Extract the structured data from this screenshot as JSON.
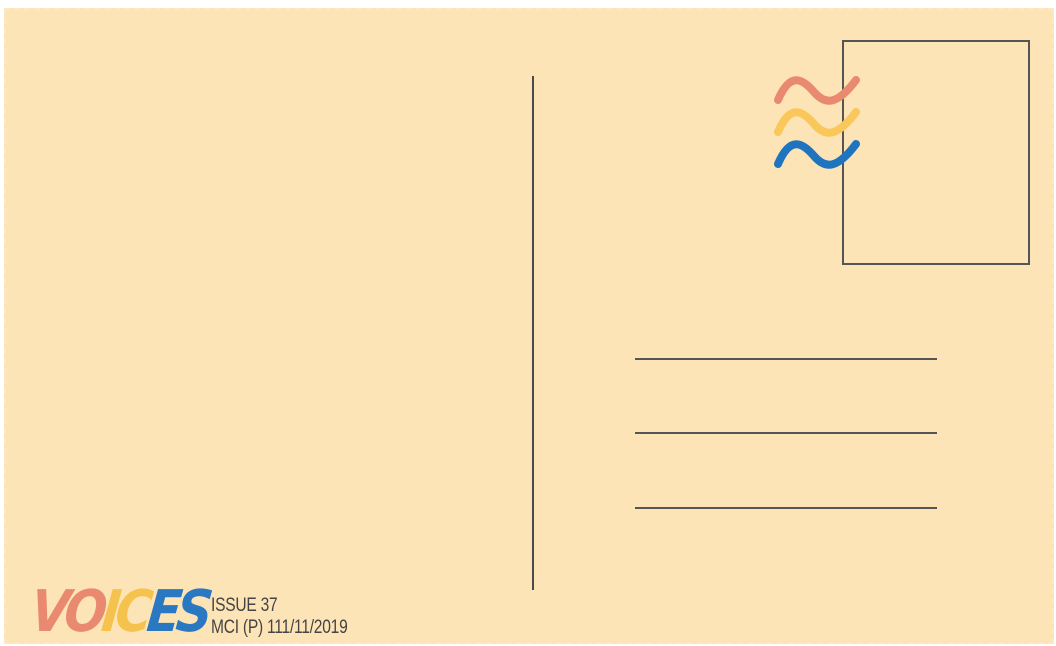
{
  "brand": {
    "logo_letters": [
      {
        "char": "V",
        "color": "#e98a70"
      },
      {
        "char": "O",
        "color": "#e98a70"
      },
      {
        "char": "I",
        "color": "#f6c24e"
      },
      {
        "char": "C",
        "color": "#f6c24e"
      },
      {
        "char": "E",
        "color": "#2b78c2"
      },
      {
        "char": "S",
        "color": "#2b78c2"
      }
    ],
    "issue_label": "ISSUE 37",
    "mci_label": "MCI (P) 111/11/2019"
  },
  "colors": {
    "card_background": "#fde4b6",
    "line_color": "#555555",
    "wave_coral": "#e98a70",
    "wave_yellow": "#f9c75a",
    "wave_blue": "#1f74bf"
  }
}
